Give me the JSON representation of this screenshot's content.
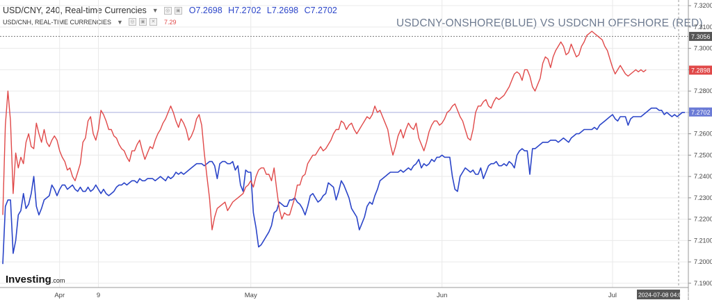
{
  "header": {
    "symbol": "USD/CNY, 240, Real-time Currencies",
    "open": "O7.2698",
    "high": "H7.2702",
    "low": "L7.2698",
    "close": "C7.2702",
    "second_symbol": "USD/CNH, REAL-TIME CURRENCIES",
    "second_value": "7.29"
  },
  "title": "USDCNY-ONSHORE(BLUE) VS USDCNH OFFSHORE (RED)",
  "watermark": {
    "brand": "Investing",
    "suffix": ".com"
  },
  "colors": {
    "blue": "#2a44c8",
    "red": "#e04848",
    "grid": "#e9e9e9",
    "hline": "#aab0e0"
  },
  "chart_data": {
    "type": "line",
    "ylim": [
      7.188,
      7.322
    ],
    "y_ticks": [
      "7.1900",
      "7.2000",
      "7.2100",
      "7.2200",
      "7.2300",
      "7.2400",
      "7.2500",
      "7.2600",
      "7.2700",
      "7.2800",
      "7.2900",
      "7.3000",
      "7.3100",
      "7.3200"
    ],
    "x_tick_labels": [
      "Apr",
      "9",
      "May",
      "Jun",
      "Jul"
    ],
    "x_tick_index": [
      22,
      37,
      96,
      170,
      236
    ],
    "crosshair_label": "2024-07-08 04:00:00",
    "reference_label": "7.3056",
    "reference_value": 7.3056,
    "last_values": {
      "red": "7.2898",
      "blue": "7.2702"
    },
    "series": [
      {
        "name": "USD/CNY",
        "values": [
          7.199,
          7.226,
          7.229,
          7.229,
          7.204,
          7.21,
          7.222,
          7.224,
          7.232,
          7.225,
          7.227,
          7.232,
          7.24,
          7.226,
          7.222,
          7.225,
          7.229,
          7.23,
          7.231,
          7.236,
          7.234,
          7.231,
          7.234,
          7.236,
          7.236,
          7.234,
          7.235,
          7.236,
          7.234,
          7.233,
          7.235,
          7.233,
          7.233,
          7.235,
          7.233,
          7.234,
          7.236,
          7.234,
          7.232,
          7.234,
          7.232,
          7.231,
          7.232,
          7.233,
          7.235,
          7.236,
          7.236,
          7.237,
          7.236,
          7.237,
          7.238,
          7.238,
          7.237,
          7.239,
          7.238,
          7.238,
          7.239,
          7.239,
          7.239,
          7.238,
          7.239,
          7.24,
          7.239,
          7.238,
          7.24,
          7.239,
          7.24,
          7.242,
          7.241,
          7.242,
          7.241,
          7.242,
          7.243,
          7.244,
          7.245,
          7.246,
          7.246,
          7.246,
          7.245,
          7.246,
          7.247,
          7.247,
          7.245,
          7.239,
          7.246,
          7.247,
          7.247,
          7.246,
          7.246,
          7.247,
          7.243,
          7.245,
          7.236,
          7.233,
          7.243,
          7.242,
          7.242,
          7.223,
          7.216,
          7.207,
          7.208,
          7.21,
          7.212,
          7.214,
          7.217,
          7.223,
          7.224,
          7.228,
          7.227,
          7.226,
          7.226,
          7.229,
          7.229,
          7.23,
          7.228,
          7.227,
          7.225,
          7.222,
          7.226,
          7.231,
          7.232,
          7.23,
          7.228,
          7.229,
          7.231,
          7.232,
          7.237,
          7.236,
          7.235,
          7.229,
          7.233,
          7.238,
          7.236,
          7.233,
          7.23,
          7.225,
          7.223,
          7.221,
          7.215,
          7.218,
          7.221,
          7.226,
          7.228,
          7.227,
          7.231,
          7.234,
          7.238,
          7.239,
          7.24,
          7.241,
          7.242,
          7.242,
          7.242,
          7.242,
          7.243,
          7.242,
          7.243,
          7.244,
          7.243,
          7.245,
          7.246,
          7.248,
          7.244,
          7.246,
          7.245,
          7.246,
          7.248,
          7.247,
          7.249,
          7.249,
          7.25,
          7.249,
          7.249,
          7.249,
          7.24,
          7.234,
          7.233,
          7.24,
          7.242,
          7.244,
          7.243,
          7.242,
          7.243,
          7.241,
          7.241,
          7.244,
          7.239,
          7.242,
          7.245,
          7.246,
          7.246,
          7.247,
          7.245,
          7.245,
          7.246,
          7.245,
          7.247,
          7.246,
          7.244,
          7.25,
          7.252,
          7.253,
          7.252,
          7.252,
          7.241,
          7.253,
          7.253,
          7.254,
          7.255,
          7.256,
          7.256,
          7.256,
          7.257,
          7.257,
          7.257,
          7.256,
          7.257,
          7.258,
          7.257,
          7.256,
          7.258,
          7.259,
          7.26,
          7.26,
          7.261,
          7.262,
          7.262,
          7.262,
          7.262,
          7.263,
          7.262,
          7.264,
          7.265,
          7.266,
          7.267,
          7.268,
          7.269,
          7.267,
          7.266,
          7.268,
          7.268,
          7.268,
          7.264,
          7.267,
          7.268,
          7.268,
          7.268,
          7.268,
          7.269,
          7.27,
          7.271,
          7.272,
          7.272,
          7.272,
          7.271,
          7.271,
          7.269,
          7.27,
          7.269,
          7.268,
          7.269,
          7.268,
          7.269,
          7.27,
          7.27
        ]
      },
      {
        "name": "USD/CNH",
        "values": [
          7.222,
          7.264,
          7.28,
          7.266,
          7.232,
          7.251,
          7.244,
          7.249,
          7.246,
          7.256,
          7.26,
          7.254,
          7.253,
          7.265,
          7.26,
          7.256,
          7.262,
          7.256,
          7.254,
          7.257,
          7.259,
          7.257,
          7.252,
          7.249,
          7.247,
          7.243,
          7.244,
          7.24,
          7.238,
          7.242,
          7.246,
          7.256,
          7.258,
          7.266,
          7.268,
          7.26,
          7.257,
          7.262,
          7.271,
          7.269,
          7.266,
          7.262,
          7.262,
          7.259,
          7.258,
          7.255,
          7.253,
          7.252,
          7.249,
          7.247,
          7.252,
          7.252,
          7.255,
          7.257,
          7.252,
          7.248,
          7.251,
          7.254,
          7.253,
          7.257,
          7.26,
          7.262,
          7.265,
          7.267,
          7.27,
          7.273,
          7.27,
          7.266,
          7.263,
          7.267,
          7.265,
          7.262,
          7.257,
          7.259,
          7.262,
          7.267,
          7.269,
          7.264,
          7.251,
          7.24,
          7.23,
          7.215,
          7.221,
          7.225,
          7.226,
          7.227,
          7.228,
          7.224,
          7.226,
          7.228,
          7.229,
          7.23,
          7.231,
          7.232,
          7.235,
          7.236,
          7.238,
          7.235,
          7.24,
          7.243,
          7.244,
          7.244,
          7.241,
          7.241,
          7.238,
          7.244,
          7.234,
          7.225,
          7.22,
          7.223,
          7.222,
          7.222,
          7.226,
          7.23,
          7.236,
          7.236,
          7.24,
          7.241,
          7.246,
          7.248,
          7.25,
          7.25,
          7.252,
          7.254,
          7.252,
          7.253,
          7.255,
          7.257,
          7.26,
          7.262,
          7.262,
          7.266,
          7.265,
          7.262,
          7.264,
          7.265,
          7.262,
          7.26,
          7.262,
          7.264,
          7.266,
          7.268,
          7.267,
          7.269,
          7.273,
          7.27,
          7.271,
          7.268,
          7.265,
          7.262,
          7.255,
          7.25,
          7.254,
          7.259,
          7.262,
          7.258,
          7.262,
          7.265,
          7.263,
          7.262,
          7.265,
          7.258,
          7.255,
          7.252,
          7.256,
          7.261,
          7.264,
          7.266,
          7.266,
          7.264,
          7.265,
          7.267,
          7.27,
          7.271,
          7.273,
          7.274,
          7.271,
          7.268,
          7.266,
          7.262,
          7.258,
          7.257,
          7.262,
          7.27,
          7.273,
          7.273,
          7.275,
          7.276,
          7.273,
          7.272,
          7.275,
          7.277,
          7.276,
          7.277,
          7.278,
          7.28,
          7.282,
          7.285,
          7.288,
          7.289,
          7.288,
          7.285,
          7.29,
          7.29,
          7.287,
          7.282,
          7.28,
          7.283,
          7.286,
          7.293,
          7.296,
          7.295,
          7.291,
          7.296,
          7.299,
          7.301,
          7.303,
          7.301,
          7.297,
          7.298,
          7.302,
          7.299,
          7.296,
          7.297,
          7.301,
          7.303,
          7.306,
          7.307,
          7.308,
          7.307,
          7.306,
          7.305,
          7.304,
          7.301,
          7.299,
          7.295,
          7.291,
          7.288,
          7.29,
          7.292,
          7.29,
          7.288,
          7.287,
          7.288,
          7.289,
          7.29,
          7.289,
          7.29,
          7.289,
          7.29
        ]
      }
    ]
  }
}
